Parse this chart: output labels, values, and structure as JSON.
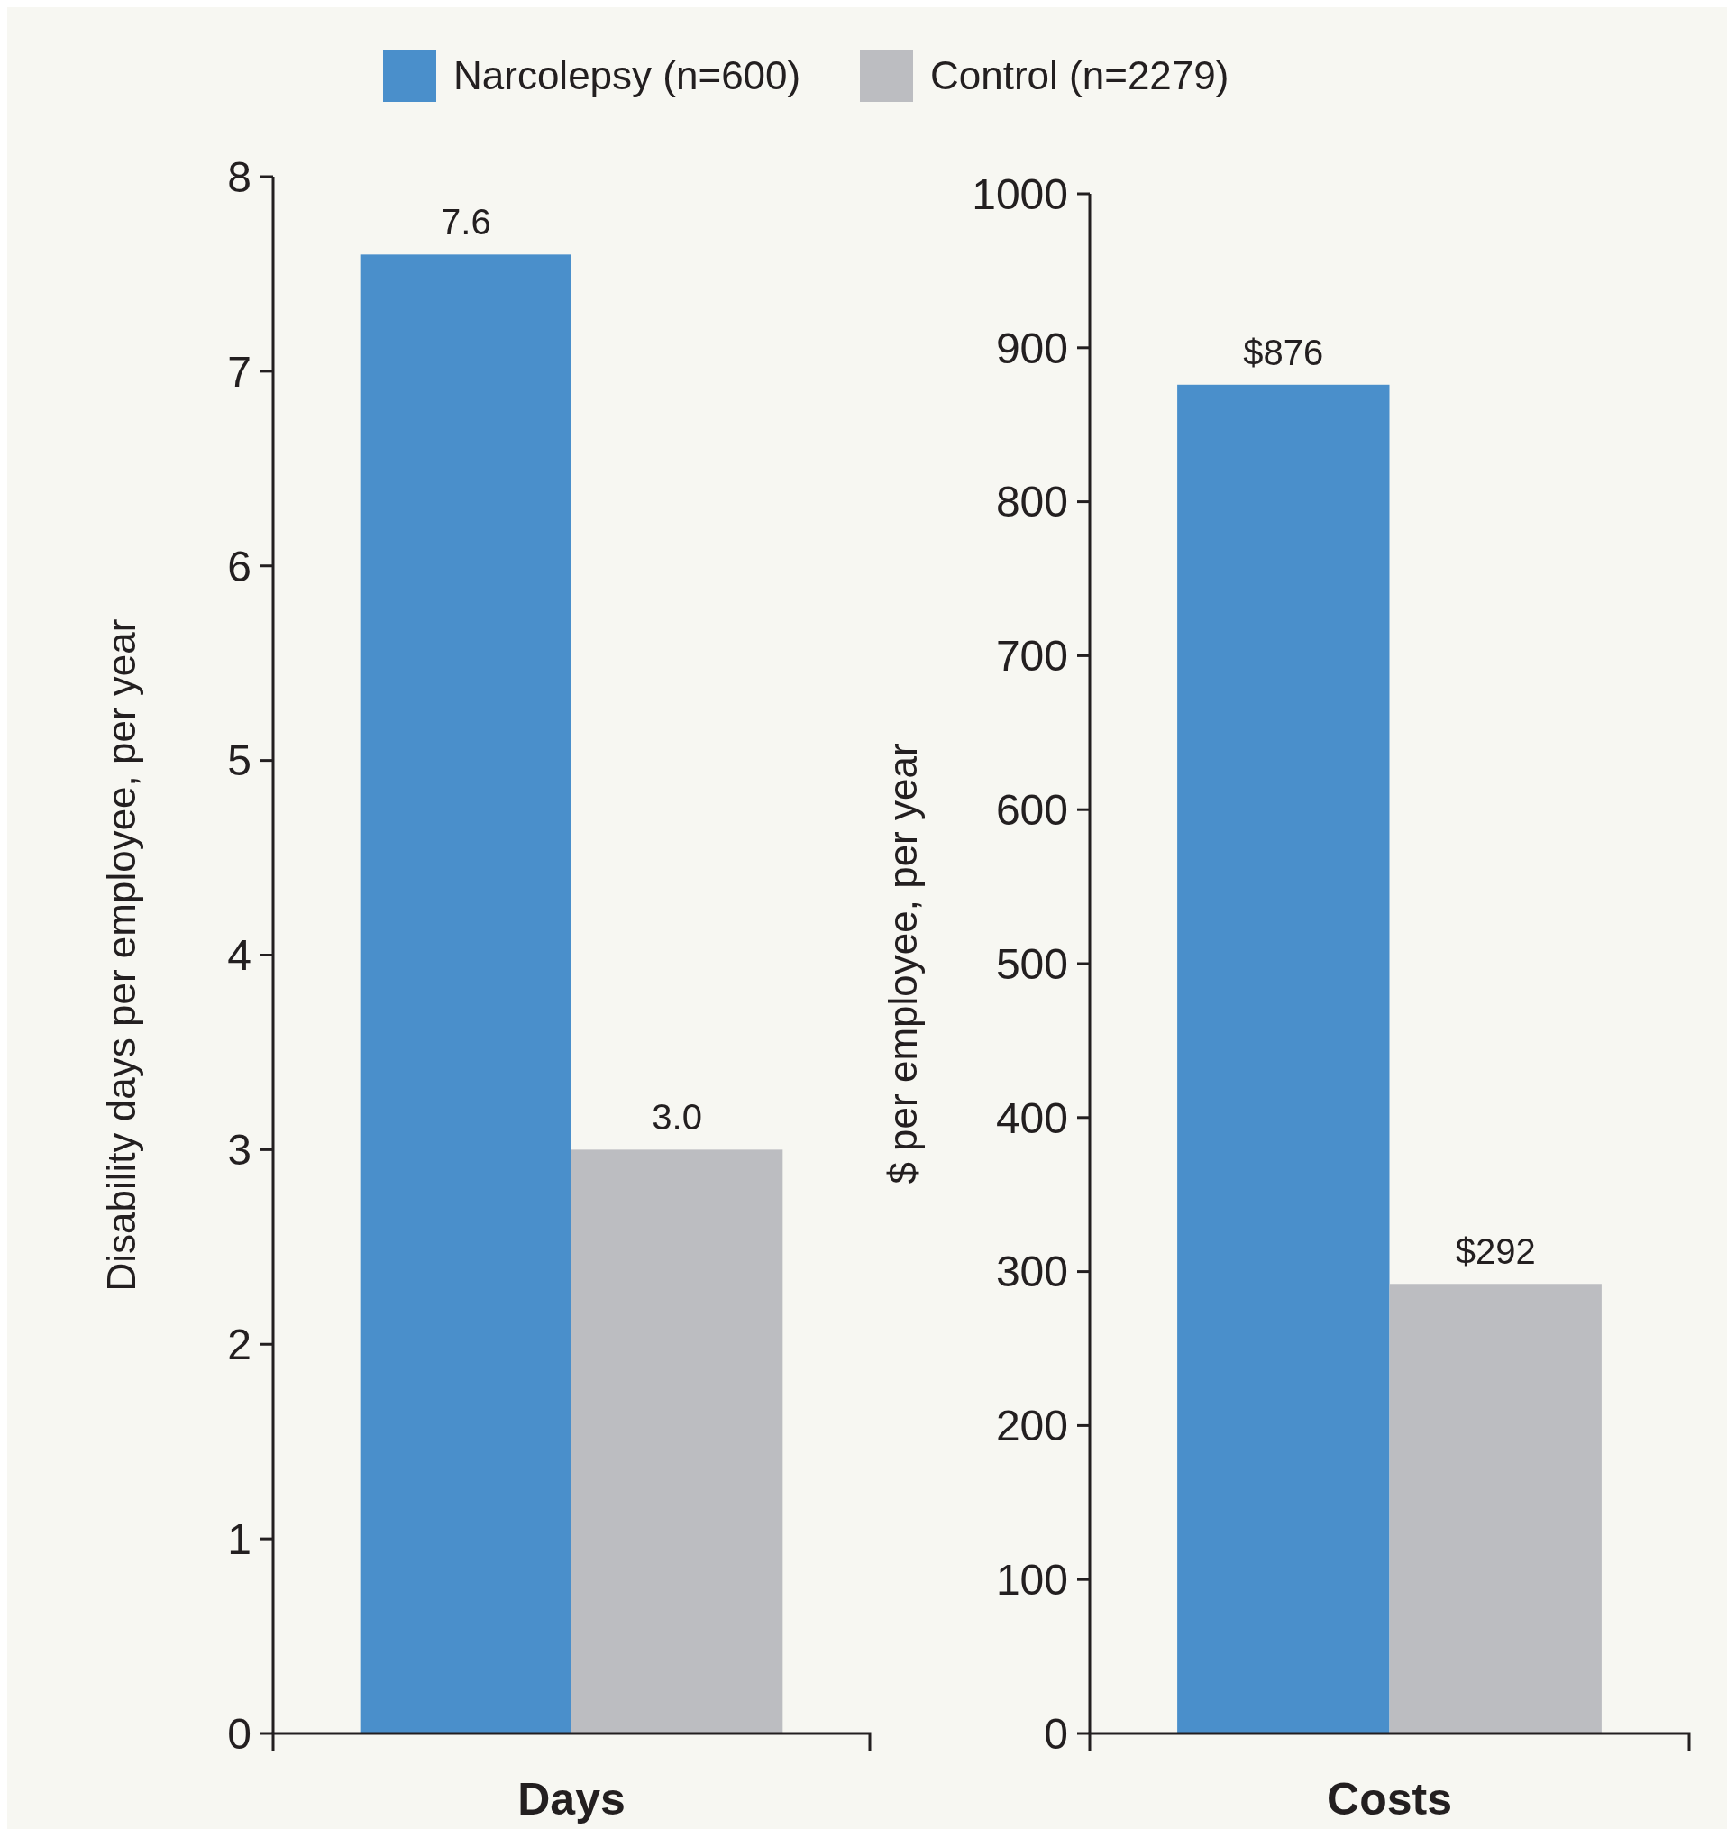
{
  "chart_data": [
    {
      "type": "bar",
      "categories": [
        "Days"
      ],
      "ylabel": "Disability days per employee, per year",
      "ylim": [
        0,
        8
      ],
      "yticks": [
        0,
        1,
        2,
        3,
        4,
        5,
        6,
        7,
        8
      ],
      "legend": "top",
      "series": [
        {
          "name": "Narcolepsy (n=600)",
          "color": "#4a8fcb",
          "values": [
            7.6
          ],
          "value_labels": [
            "7.6"
          ]
        },
        {
          "name": "Control (n=2279)",
          "color": "#bcbdc1",
          "values": [
            3.0
          ],
          "value_labels": [
            "3.0"
          ]
        }
      ]
    },
    {
      "type": "bar",
      "categories": [
        "Costs"
      ],
      "ylabel": "$ per employee, per year",
      "ylim": [
        0,
        1000
      ],
      "yticks": [
        0,
        100,
        200,
        300,
        400,
        500,
        600,
        700,
        800,
        900,
        1000
      ],
      "series": [
        {
          "color": "#4a8fcb",
          "values": [
            876
          ],
          "value_labels": [
            "$876"
          ]
        },
        {
          "color": "#bcbdc1",
          "values": [
            292
          ],
          "value_labels": [
            "$292"
          ]
        }
      ]
    }
  ]
}
